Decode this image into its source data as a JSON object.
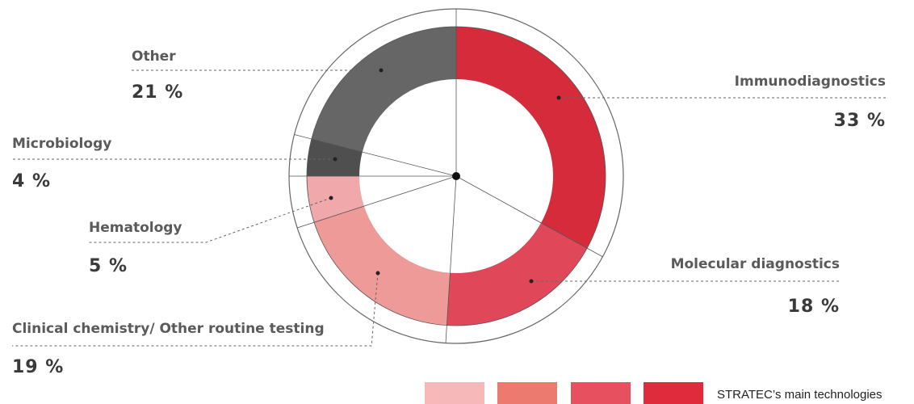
{
  "chart_data": {
    "type": "donut",
    "categories": [
      "Immunodiagnostics",
      "Molecular diagnostics",
      "Clinical chemistry/ Other routine testing",
      "Hematology",
      "Microbiology",
      "Other"
    ],
    "values": [
      33,
      18,
      19,
      5,
      4,
      21
    ],
    "value_labels": [
      "33 %",
      "18 %",
      "19 %",
      "5 %",
      "4 %",
      "21 %"
    ],
    "colors": [
      "#d62b3b",
      "#e0485a",
      "#ee9a98",
      "#f0a8ab",
      "#4f4f4f",
      "#666666"
    ],
    "legend": {
      "label": "STRATEC’s main technologies",
      "colors": [
        "#f6b8b8",
        "#ec7a6e",
        "#e6505f",
        "#df2b3c"
      ]
    }
  }
}
